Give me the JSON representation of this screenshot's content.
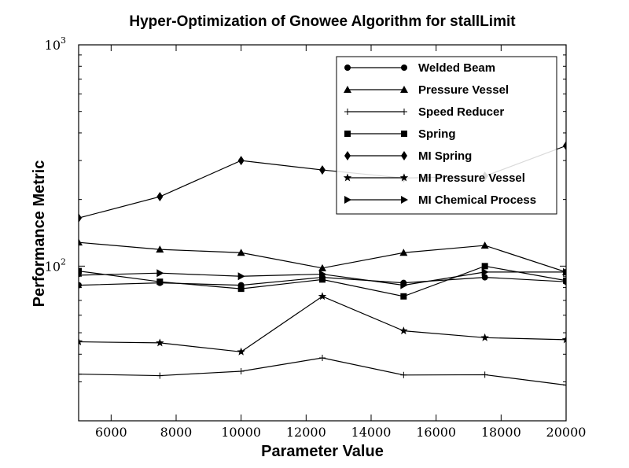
{
  "chart_data": {
    "type": "line",
    "title": "Hyper-Optimization of Gnowee Algorithm for stallLimit",
    "xlabel": "Parameter Value",
    "ylabel": "Performance Metric",
    "xlim": [
      5000,
      20000
    ],
    "ylim": [
      20,
      1000
    ],
    "yscale": "log",
    "grid": false,
    "legend_position": "top-right",
    "x_ticks": [
      6000,
      8000,
      10000,
      12000,
      14000,
      16000,
      18000,
      20000
    ],
    "y_ticks": [
      {
        "value": 100,
        "base": "10",
        "exp": "2"
      },
      {
        "value": 1000,
        "base": "10",
        "exp": "3"
      }
    ],
    "x": [
      5000,
      7500,
      10000,
      12500,
      15000,
      17500,
      20000
    ],
    "series": [
      {
        "name": "Welded Beam",
        "marker": "circle",
        "values": [
          82,
          84,
          82,
          89,
          84,
          89,
          85
        ]
      },
      {
        "name": "Pressure Vessel",
        "marker": "triangle-up",
        "values": [
          128,
          119,
          115,
          98,
          115,
          124,
          94
        ]
      },
      {
        "name": "Speed Reducer",
        "marker": "plus",
        "values": [
          32.5,
          32,
          33.5,
          38.5,
          32.2,
          32.3,
          29
        ]
      },
      {
        "name": "Spring",
        "marker": "square",
        "values": [
          95,
          85,
          79,
          87,
          73,
          100,
          86
        ]
      },
      {
        "name": "MI Spring",
        "marker": "diamond",
        "values": [
          165,
          206,
          300,
          272,
          250,
          255,
          350
        ]
      },
      {
        "name": "MI Pressure Vessel",
        "marker": "star",
        "values": [
          45.5,
          45,
          41,
          73,
          51,
          47.5,
          46.5
        ]
      },
      {
        "name": "MI Chemical Process",
        "marker": "triangle-right",
        "values": [
          91,
          93,
          90,
          92,
          82,
          94,
          94
        ]
      }
    ]
  }
}
